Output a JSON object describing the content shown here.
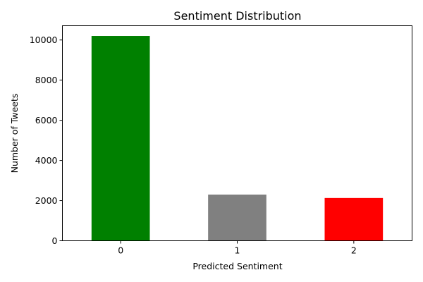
{
  "chart_data": {
    "type": "bar",
    "title": "Sentiment Distribution",
    "xlabel": "Predicted Sentiment",
    "ylabel": "Number of Tweets",
    "categories": [
      "0",
      "1",
      "2"
    ],
    "values": [
      10200,
      2300,
      2130
    ],
    "colors": [
      "#008000",
      "#808080",
      "#ff0000"
    ],
    "ylim": [
      0,
      10710
    ],
    "yticks": [
      0,
      2000,
      4000,
      6000,
      8000,
      10000
    ],
    "grid": false,
    "legend": "none"
  }
}
